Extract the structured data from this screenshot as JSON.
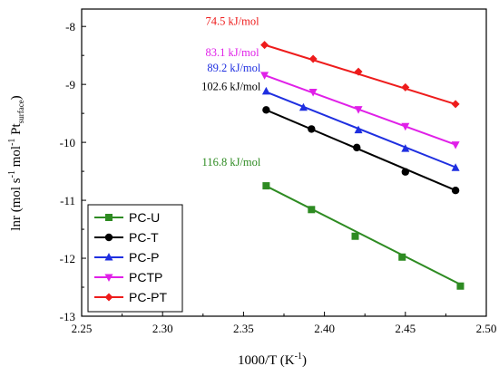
{
  "chart_data": {
    "type": "line",
    "xlabel": "1000/T (K",
    "xlabel_sup": "-1",
    "xlabel_end": ")",
    "ylabel_main": "lnr (mol s",
    "ylabel_sup1": "-1",
    "ylabel_mid": " mol",
    "ylabel_sup2": "-1",
    "ylabel_pt": " Pt",
    "ylabel_sub": "surface",
    "ylabel_end": ")",
    "xlim": [
      2.25,
      2.5
    ],
    "ylim": [
      -13,
      -7.7
    ],
    "xticks": [
      "2.25",
      "2.30",
      "2.35",
      "2.40",
      "2.45",
      "2.50"
    ],
    "yticks": [
      "-8",
      "-9",
      "-10",
      "-11",
      "-12",
      "-13"
    ],
    "xtick_values": [
      2.25,
      2.3,
      2.35,
      2.4,
      2.45,
      2.5
    ],
    "ytick_values": [
      -8,
      -9,
      -10,
      -11,
      -12,
      -13
    ],
    "legend_position": "bottom-left",
    "grid": false,
    "series": [
      {
        "name": "PC-U",
        "color": "#2e8b22",
        "marker": "square",
        "x": [
          2.364,
          2.392,
          2.419,
          2.448,
          2.484
        ],
        "y": [
          -10.75,
          -11.16,
          -11.62,
          -11.98,
          -12.48
        ],
        "fit": [
          [
            2.363,
            -10.74
          ],
          [
            2.486,
            -12.48
          ]
        ],
        "annotation": "116.8 kJ/mol"
      },
      {
        "name": "PC-T",
        "color": "#000000",
        "marker": "circle",
        "x": [
          2.364,
          2.392,
          2.42,
          2.45,
          2.481
        ],
        "y": [
          -9.44,
          -9.77,
          -10.09,
          -10.51,
          -10.83
        ],
        "fit": [
          [
            2.363,
            -9.43
          ],
          [
            2.482,
            -10.84
          ]
        ],
        "annotation": "102.6 kJ/mol"
      },
      {
        "name": "PC-P",
        "color": "#1f2fe0",
        "marker": "triangle-up",
        "x": [
          2.364,
          2.387,
          2.421,
          2.45,
          2.481
        ],
        "y": [
          -9.12,
          -9.4,
          -9.79,
          -10.11,
          -10.44
        ],
        "fit": [
          [
            2.363,
            -9.12
          ],
          [
            2.482,
            -10.44
          ]
        ],
        "annotation": "89.2 kJ/mol"
      },
      {
        "name": "PCTP",
        "color": "#e020e8",
        "marker": "triangle-down",
        "x": [
          2.363,
          2.393,
          2.421,
          2.45,
          2.481
        ],
        "y": [
          -8.84,
          -9.13,
          -9.43,
          -9.72,
          -10.04
        ],
        "fit": [
          [
            2.362,
            -8.83
          ],
          [
            2.482,
            -10.05
          ]
        ],
        "annotation": "83.1 kJ/mol"
      },
      {
        "name": "PC-PT",
        "color": "#ee1c1c",
        "marker": "diamond",
        "x": [
          2.363,
          2.393,
          2.421,
          2.45,
          2.481
        ],
        "y": [
          -8.32,
          -8.56,
          -8.78,
          -9.05,
          -9.34
        ],
        "fit": [
          [
            2.362,
            -8.31
          ],
          [
            2.482,
            -9.35
          ]
        ],
        "annotation": "74.5 kJ/mol"
      }
    ]
  }
}
